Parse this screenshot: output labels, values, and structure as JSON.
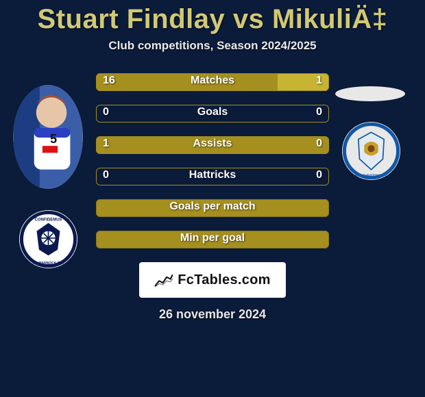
{
  "title": "Stuart Findlay vs MikuliÄ‡",
  "subtitle": "Club competitions, Season 2024/2025",
  "bars": [
    {
      "label": "Matches",
      "left_val": "16",
      "right_val": "1",
      "left_pct": 78,
      "right_pct": 22,
      "variant": "split"
    },
    {
      "label": "Goals",
      "left_val": "0",
      "right_val": "0",
      "left_pct": 0,
      "right_pct": 0,
      "variant": "outline"
    },
    {
      "label": "Assists",
      "left_val": "1",
      "right_val": "0",
      "left_pct": 100,
      "right_pct": 0,
      "variant": "outline"
    },
    {
      "label": "Hattricks",
      "left_val": "0",
      "right_val": "0",
      "left_pct": 0,
      "right_pct": 0,
      "variant": "outline"
    },
    {
      "label": "Goals per match",
      "left_val": "",
      "right_val": "",
      "left_pct": 100,
      "right_pct": 0,
      "variant": "full"
    },
    {
      "label": "Min per goal",
      "left_val": "",
      "right_val": "",
      "left_pct": 100,
      "right_pct": 0,
      "variant": "full"
    }
  ],
  "site_label": "FcTables.com",
  "date_text": "26 november 2024",
  "colors": {
    "background": "#0b1b3a",
    "accent": "#a48f1f",
    "title": "#d1c974",
    "text": "#ffffff"
  }
}
